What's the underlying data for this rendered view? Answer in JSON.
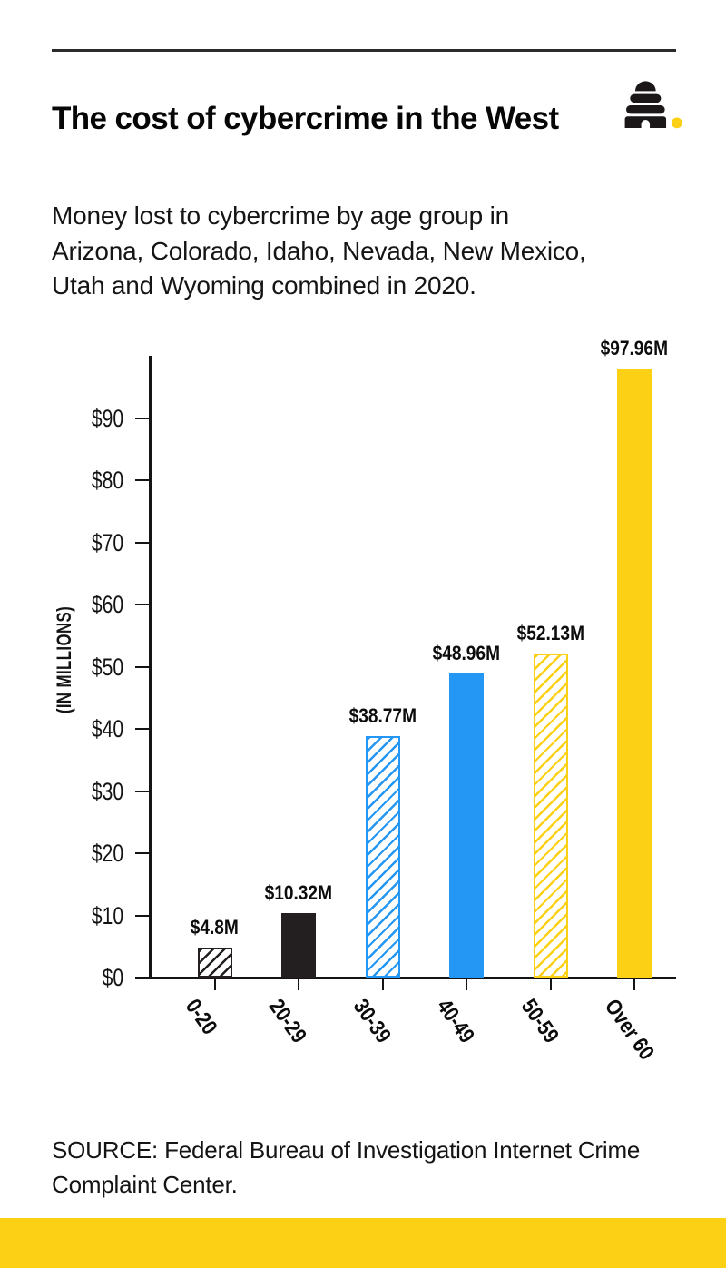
{
  "header": {
    "title": "The cost of cybercrime in the West",
    "logo": "beehive-logo"
  },
  "subtitle": "Money lost to cybercrime by age group in\nArizona, Colorado, Idaho, Nevada, New Mexico,\nUtah and Wyoming combined in 2020.",
  "chart_data": {
    "type": "bar",
    "title": "The cost of cybercrime in the West",
    "categories": [
      "0-20",
      "20-29",
      "30-39",
      "40-49",
      "50-59",
      "Over 60"
    ],
    "values": [
      4.8,
      10.32,
      38.77,
      48.96,
      52.13,
      97.96
    ],
    "value_labels": [
      "$4.8M",
      "$10.32M",
      "$38.77M",
      "$48.96M",
      "$52.13M",
      "$97.96M"
    ],
    "xlabel": "",
    "ylabel": "(IN MILLIONS)",
    "ylim": [
      0,
      100
    ],
    "ytick_step": 10,
    "ytick_labels": [
      "$0",
      "$10",
      "$20",
      "$30",
      "$40",
      "$50",
      "$60",
      "$70",
      "$80",
      "$90"
    ],
    "grid": false,
    "legend": null,
    "bar_styles": [
      {
        "fill": "hatch",
        "color": "#231f20"
      },
      {
        "fill": "solid",
        "color": "#231f20"
      },
      {
        "fill": "hatch",
        "color": "#2397f3"
      },
      {
        "fill": "solid",
        "color": "#2397f3"
      },
      {
        "fill": "hatch",
        "color": "#fcd015"
      },
      {
        "fill": "solid",
        "color": "#fcd015"
      }
    ]
  },
  "source": "SOURCE: Federal Bureau of Investigation Internet Crime\nComplaint Center.",
  "colors": {
    "accent_yellow": "#fcd015",
    "blue": "#2397f3",
    "black_bar": "#231f20",
    "ink": "#141414"
  }
}
